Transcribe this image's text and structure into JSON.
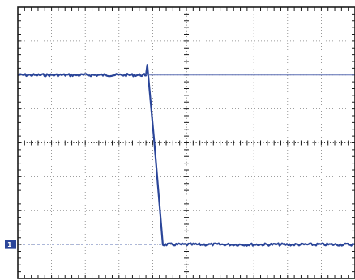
{
  "chart_data": {
    "type": "line",
    "title": "",
    "xlabel": "",
    "ylabel": "",
    "xlim": [
      0,
      10
    ],
    "ylim": [
      -4,
      4
    ],
    "grid": true,
    "major_divisions": {
      "x": 10,
      "y": 8
    },
    "minor_ticks_per_division": 5,
    "channel_marker": "1",
    "series": [
      {
        "values_x": [
          0,
          3.75,
          3.8,
          3.84,
          4.05,
          4.3,
          10
        ],
        "values_y": [
          2.0,
          2.0,
          2.0,
          2.3,
          0,
          -3.0,
          -3.0
        ],
        "noisy": true
      },
      {
        "values_x": [
          3.8,
          10
        ],
        "values_y": [
          2.0,
          2.0
        ],
        "noisy": false
      },
      {
        "values_x": [
          0,
          4.3
        ],
        "values_y": [
          -3.0,
          -3.0
        ],
        "dashed": true
      }
    ],
    "colors": {
      "trace": "#2a4599",
      "trace_faint": "#5b6fb3",
      "baseline": "#7b8cc2",
      "grid": "#7f7f7f",
      "frame": "#1c1c1c"
    }
  }
}
